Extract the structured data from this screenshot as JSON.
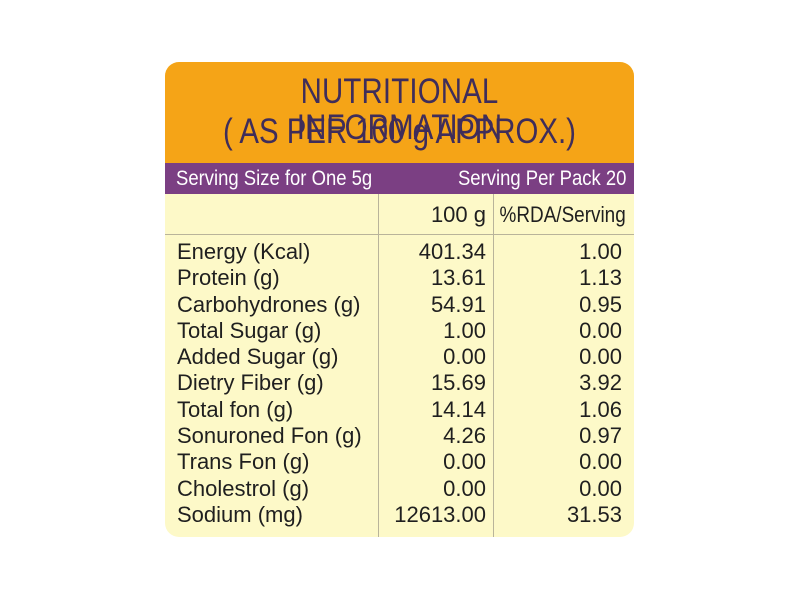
{
  "header": {
    "line1": "NUTRITIONAL INFORMATION",
    "line2": "( AS PER 100 g APPROX.)"
  },
  "serving": {
    "size_label": "Serving Size for One 5g",
    "per_pack_label": "Serving Per Pack 20"
  },
  "columns": {
    "per_100g": "100 g",
    "rda": "%RDA/Serving"
  },
  "nutrients": [
    {
      "name": "Energy (Kcal)",
      "per_100g": "401.34",
      "rda": "1.00"
    },
    {
      "name": "Protein (g)",
      "per_100g": "13.61",
      "rda": "1.13"
    },
    {
      "name": "Carbohydrones (g)",
      "per_100g": "54.91",
      "rda": "0.95"
    },
    {
      "name": "Total Sugar (g)",
      "per_100g": "1.00",
      "rda": "0.00"
    },
    {
      "name": "Added Sugar (g)",
      "per_100g": "0.00",
      "rda": "0.00"
    },
    {
      "name": "Dietry Fiber (g)",
      "per_100g": "15.69",
      "rda": "3.92"
    },
    {
      "name": "Total fon (g)",
      "per_100g": "14.14",
      "rda": "1.06"
    },
    {
      "name": "Sonuroned Fon (g)",
      "per_100g": "4.26",
      "rda": "0.97"
    },
    {
      "name": "Trans Fon (g)",
      "per_100g": "0.00",
      "rda": "0.00"
    },
    {
      "name": "Cholestrol (g)",
      "per_100g": "0.00",
      "rda": "0.00"
    },
    {
      "name": "Sodium (mg)",
      "per_100g": "12613.00",
      "rda": "31.53"
    }
  ],
  "colors": {
    "header_bg": "#f5a417",
    "band_bg": "#7b3f83",
    "body_bg": "#fdf9c8",
    "header_text": "#3f2d5a"
  }
}
